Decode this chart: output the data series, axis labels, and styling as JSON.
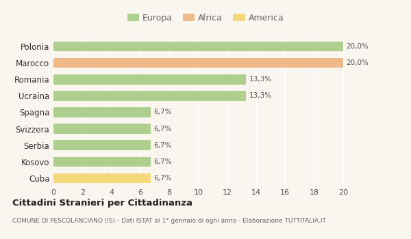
{
  "categories": [
    "Polonia",
    "Marocco",
    "Romania",
    "Ucraina",
    "Spagna",
    "Svizzera",
    "Serbia",
    "Kosovo",
    "Cuba"
  ],
  "values": [
    20.0,
    20.0,
    13.3,
    13.3,
    6.7,
    6.7,
    6.7,
    6.7,
    6.7
  ],
  "colors": [
    "#aecf8e",
    "#f0b98a",
    "#aecf8e",
    "#aecf8e",
    "#aecf8e",
    "#aecf8e",
    "#aecf8e",
    "#aecf8e",
    "#f5d87a"
  ],
  "labels": [
    "20,0%",
    "20,0%",
    "13,3%",
    "13,3%",
    "6,7%",
    "6,7%",
    "6,7%",
    "6,7%",
    "6,7%"
  ],
  "legend_labels": [
    "Europa",
    "Africa",
    "America"
  ],
  "legend_colors": [
    "#aecf8e",
    "#f0b98a",
    "#f5d87a"
  ],
  "xlim_max": 21,
  "xticks": [
    0,
    2,
    4,
    6,
    8,
    10,
    12,
    14,
    16,
    18,
    20
  ],
  "title": "Cittadini Stranieri per Cittadinanza",
  "subtitle": "COMUNE DI PESCOLANCIANO (IS) - Dati ISTAT al 1° gennaio di ogni anno - Elaborazione TUTTITALIA.IT",
  "bg_color": "#f9f5ef",
  "grid_color": "#ffffff",
  "bar_height": 0.6
}
